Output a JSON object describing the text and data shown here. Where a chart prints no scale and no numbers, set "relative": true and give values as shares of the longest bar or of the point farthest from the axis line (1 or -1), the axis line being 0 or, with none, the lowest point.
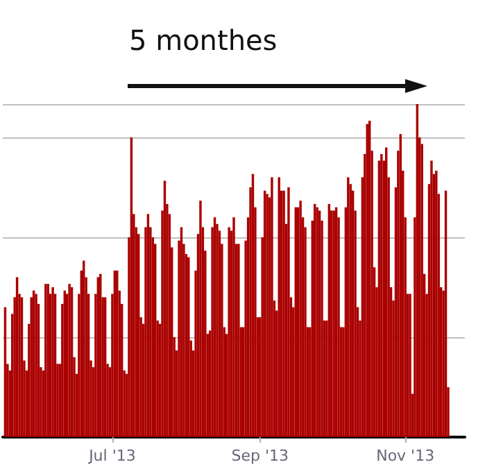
{
  "chart_data": {
    "type": "bar",
    "relative": true,
    "grid": "y",
    "color": "#aa0000",
    "annotations": [
      "5 monthes"
    ],
    "xlim": [
      "2013-05-16",
      "2013-11-26"
    ],
    "xticks": [
      {
        "value": "2013-07-01",
        "label": "Jul '13"
      },
      {
        "value": "2013-09-01",
        "label": "Sep '13"
      },
      {
        "value": "2013-11-01",
        "label": "Nov '13"
      }
    ],
    "x": [
      "2013-05-17",
      "2013-05-18",
      "2013-05-19",
      "2013-05-20",
      "2013-05-21",
      "2013-05-22",
      "2013-05-23",
      "2013-05-24",
      "2013-05-25",
      "2013-05-26",
      "2013-05-27",
      "2013-05-28",
      "2013-05-29",
      "2013-05-30",
      "2013-05-31",
      "2013-06-01",
      "2013-06-02",
      "2013-06-03",
      "2013-06-04",
      "2013-06-05",
      "2013-06-06",
      "2013-06-07",
      "2013-06-08",
      "2013-06-09",
      "2013-06-10",
      "2013-06-11",
      "2013-06-12",
      "2013-06-13",
      "2013-06-14",
      "2013-06-15",
      "2013-06-16",
      "2013-06-17",
      "2013-06-18",
      "2013-06-19",
      "2013-06-20",
      "2013-06-21",
      "2013-06-22",
      "2013-06-23",
      "2013-06-24",
      "2013-06-25",
      "2013-06-26",
      "2013-06-27",
      "2013-06-28",
      "2013-06-29",
      "2013-06-30",
      "2013-07-01",
      "2013-07-02",
      "2013-07-03",
      "2013-07-04",
      "2013-07-05",
      "2013-07-06",
      "2013-07-07",
      "2013-07-08",
      "2013-07-09",
      "2013-07-10",
      "2013-07-11",
      "2013-07-12",
      "2013-07-13",
      "2013-07-14",
      "2013-07-15",
      "2013-07-16",
      "2013-07-17",
      "2013-07-18",
      "2013-07-19",
      "2013-07-20",
      "2013-07-21",
      "2013-07-22",
      "2013-07-23",
      "2013-07-24",
      "2013-07-25",
      "2013-07-26",
      "2013-07-27",
      "2013-07-28",
      "2013-07-29",
      "2013-07-30",
      "2013-07-31",
      "2013-08-01",
      "2013-08-02",
      "2013-08-03",
      "2013-08-04",
      "2013-08-05",
      "2013-08-06",
      "2013-08-07",
      "2013-08-08",
      "2013-08-09",
      "2013-08-10",
      "2013-08-11",
      "2013-08-12",
      "2013-08-13",
      "2013-08-14",
      "2013-08-15",
      "2013-08-16",
      "2013-08-17",
      "2013-08-18",
      "2013-08-19",
      "2013-08-20",
      "2013-08-21",
      "2013-08-22",
      "2013-08-23",
      "2013-08-24",
      "2013-08-25",
      "2013-08-26",
      "2013-08-27",
      "2013-08-28",
      "2013-08-29",
      "2013-08-30",
      "2013-08-31",
      "2013-09-01",
      "2013-09-02",
      "2013-09-03",
      "2013-09-04",
      "2013-09-05",
      "2013-09-06",
      "2013-09-07",
      "2013-09-08",
      "2013-09-09",
      "2013-09-10",
      "2013-09-11",
      "2013-09-12",
      "2013-09-13",
      "2013-09-14",
      "2013-09-15",
      "2013-09-16",
      "2013-09-17",
      "2013-09-18",
      "2013-09-19",
      "2013-09-20",
      "2013-09-21",
      "2013-09-22",
      "2013-09-23",
      "2013-09-24",
      "2013-09-25",
      "2013-09-26",
      "2013-09-27",
      "2013-09-28",
      "2013-09-29",
      "2013-09-30",
      "2013-10-01",
      "2013-10-02",
      "2013-10-03",
      "2013-10-04",
      "2013-10-05",
      "2013-10-06",
      "2013-10-07",
      "2013-10-08",
      "2013-10-09",
      "2013-10-10",
      "2013-10-11",
      "2013-10-12",
      "2013-10-13",
      "2013-10-14",
      "2013-10-15",
      "2013-10-16",
      "2013-10-17",
      "2013-10-18",
      "2013-10-19",
      "2013-10-20",
      "2013-10-21",
      "2013-10-22",
      "2013-10-23",
      "2013-10-24",
      "2013-10-25",
      "2013-10-26",
      "2013-10-27",
      "2013-10-28",
      "2013-10-29",
      "2013-10-30",
      "2013-10-31",
      "2013-11-01",
      "2013-11-02",
      "2013-11-03",
      "2013-11-04",
      "2013-11-05",
      "2013-11-06",
      "2013-11-07",
      "2013-11-08",
      "2013-11-09",
      "2013-11-10",
      "2013-11-11",
      "2013-11-12",
      "2013-11-13",
      "2013-11-14",
      "2013-11-15",
      "2013-11-16",
      "2013-11-17",
      "2013-11-18",
      "2013-11-19"
    ],
    "values": [
      0.39,
      0.22,
      0.2,
      0.37,
      0.42,
      0.48,
      0.43,
      0.42,
      0.23,
      0.2,
      0.34,
      0.42,
      0.44,
      0.43,
      0.4,
      0.21,
      0.2,
      0.46,
      0.46,
      0.43,
      0.45,
      0.43,
      0.22,
      0.22,
      0.4,
      0.44,
      0.43,
      0.46,
      0.45,
      0.24,
      0.19,
      0.43,
      0.5,
      0.53,
      0.48,
      0.43,
      0.23,
      0.21,
      0.43,
      0.48,
      0.49,
      0.42,
      0.42,
      0.22,
      0.21,
      0.43,
      0.5,
      0.5,
      0.44,
      0.4,
      0.2,
      0.19,
      0.6,
      0.9,
      0.67,
      0.63,
      0.61,
      0.36,
      0.34,
      0.63,
      0.67,
      0.63,
      0.6,
      0.58,
      0.35,
      0.34,
      0.68,
      0.77,
      0.7,
      0.67,
      0.57,
      0.3,
      0.26,
      0.59,
      0.63,
      0.58,
      0.55,
      0.54,
      0.29,
      0.26,
      0.5,
      0.61,
      0.71,
      0.63,
      0.56,
      0.31,
      0.32,
      0.63,
      0.66,
      0.64,
      0.62,
      0.58,
      0.33,
      0.31,
      0.63,
      0.62,
      0.66,
      0.58,
      0.58,
      0.33,
      0.33,
      0.59,
      0.66,
      0.75,
      0.79,
      0.69,
      0.36,
      0.36,
      0.6,
      0.74,
      0.73,
      0.72,
      0.78,
      0.41,
      0.38,
      0.78,
      0.74,
      0.74,
      0.64,
      0.75,
      0.42,
      0.39,
      0.69,
      0.69,
      0.71,
      0.66,
      0.63,
      0.33,
      0.33,
      0.65,
      0.7,
      0.69,
      0.68,
      0.65,
      0.35,
      0.35,
      0.7,
      0.68,
      0.68,
      0.69,
      0.66,
      0.33,
      0.33,
      0.69,
      0.78,
      0.76,
      0.74,
      0.68,
      0.39,
      0.35,
      0.78,
      0.85,
      0.94,
      0.95,
      0.86,
      0.51,
      0.45,
      0.83,
      0.85,
      0.83,
      0.87,
      0.78,
      0.45,
      0.41,
      0.75,
      0.86,
      0.91,
      0.8,
      0.66,
      0.43,
      0.43,
      0.13,
      0.66,
      1,
      0.9,
      0.88,
      0.49,
      0.43,
      0.76,
      0.83,
      0.79,
      0.8,
      0.73,
      0.45,
      0.44,
      0.74,
      0.15
    ]
  }
}
